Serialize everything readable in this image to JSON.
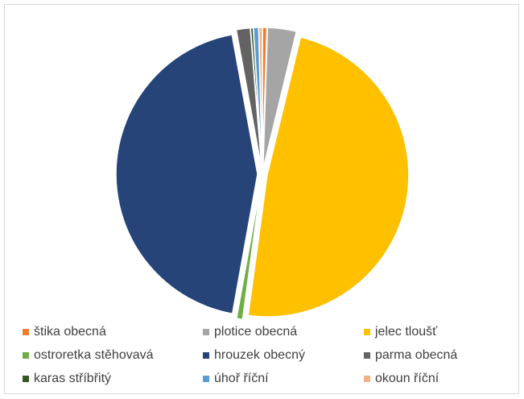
{
  "chart_data": {
    "type": "pie",
    "title": "",
    "slices": [
      {
        "label": "štika obecná",
        "value": 0.5,
        "color": "#ed7d31"
      },
      {
        "label": "plotice obecná",
        "value": 3.3,
        "color": "#a5a5a5"
      },
      {
        "label": "jelec tloušť",
        "value": 48.5,
        "color": "#ffc000"
      },
      {
        "label": "ostroretka stěhovavá",
        "value": 0.7,
        "color": "#70ad47"
      },
      {
        "label": "hrouzek obecný",
        "value": 44.4,
        "color": "#264478"
      },
      {
        "label": "parma obecná",
        "value": 1.6,
        "color": "#636363"
      },
      {
        "label": "karas stříbřitý",
        "value": 0.3,
        "color": "#375623"
      },
      {
        "label": "úhoř říční",
        "value": 0.6,
        "color": "#5b9bd5"
      },
      {
        "label": "okoun říční",
        "value": 0.4,
        "color": "#f4b183"
      }
    ],
    "legend_position": "bottom"
  }
}
